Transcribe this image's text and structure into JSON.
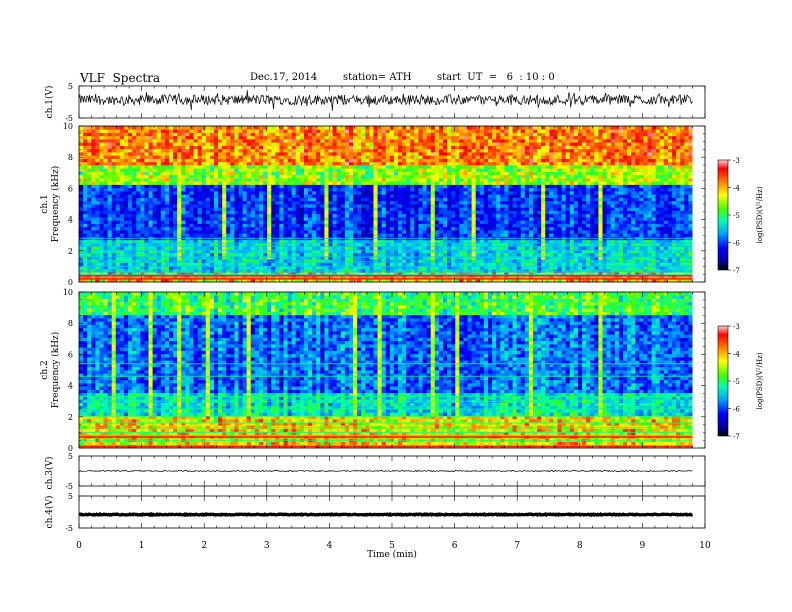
{
  "header": {
    "title": "VLF  Spectra",
    "date": "Dec.17, 2014",
    "station": "station= ATH",
    "start": "start  UT  =   6  : 10 : 0"
  },
  "chart_data": [
    {
      "id": "ch1-voltage",
      "type": "line",
      "ylabel": "ch.1(V)",
      "ylim": [
        -5,
        5
      ],
      "y_ticks": [
        "5",
        "-5"
      ],
      "xlim": [
        0,
        10
      ],
      "x_end_data": 9.8,
      "baseline": 0.7,
      "noise_amplitude": 1.6,
      "color": "#000000"
    },
    {
      "id": "ch1-spectrogram",
      "type": "heatmap",
      "ylabel_line1": "ch.1",
      "ylabel_line2": "Frequency  (kHz)",
      "ylim": [
        0,
        10
      ],
      "y_ticks": [
        "0",
        "2",
        "4",
        "6",
        "8",
        "10"
      ],
      "xlim": [
        0,
        10
      ],
      "x_end_data": 9.8,
      "colorbar": {
        "label": "log(PSD)(V²/Hz)",
        "ticks": [
          "-3",
          "-4",
          "-5",
          "-6",
          "-7"
        ],
        "range": [
          -7,
          -3
        ]
      },
      "bands_khz": [
        0.3,
        0.5,
        0.7,
        1.0,
        1.3,
        1.6,
        2.0,
        2.3,
        2.5,
        2.8
      ],
      "strong_lines_khz": [
        0.2,
        0.4
      ],
      "vertical_bursts_min": [
        1.6,
        2.3,
        3.0,
        3.9,
        4.7,
        5.6,
        6.3,
        7.4,
        8.3
      ]
    },
    {
      "id": "ch2-spectrogram",
      "type": "heatmap",
      "ylabel_line1": "ch.2",
      "ylabel_line2": "Frequency  (kHz)",
      "ylim": [
        0,
        10
      ],
      "y_ticks": [
        "0",
        "2",
        "4",
        "6",
        "8",
        "10"
      ],
      "xlim": [
        0,
        10
      ],
      "x_end_data": 9.8,
      "colorbar": {
        "label": "log(PSD)(V²/Hz)",
        "ticks": [
          "-3",
          "-4",
          "-5",
          "-6",
          "-7"
        ],
        "range": [
          -7,
          -3
        ]
      },
      "bands_khz": [
        0.5,
        0.8,
        1.0,
        1.3,
        1.6,
        2.0,
        2.5,
        3.0,
        3.3,
        4.6,
        5.4
      ],
      "strong_lines_khz": [
        0.1,
        0.7
      ],
      "vertical_bursts_min": [
        0.5,
        1.1,
        1.6,
        2.0,
        2.7,
        4.4,
        4.8,
        5.6,
        6.0,
        7.2,
        8.3
      ]
    },
    {
      "id": "ch3-voltage",
      "type": "line",
      "ylabel": "ch.3(V)",
      "ylim": [
        -5,
        5
      ],
      "y_ticks": [
        "5",
        "-5"
      ],
      "xlim": [
        0,
        10
      ],
      "x_end_data": 9.8,
      "baseline": 0.0,
      "noise_amplitude": 0.2,
      "color": "#000000"
    },
    {
      "id": "ch4-voltage",
      "type": "line",
      "ylabel": "ch.4(V)",
      "ylim": [
        -5,
        5
      ],
      "y_ticks": [
        "5",
        "-5"
      ],
      "xlim": [
        0,
        10
      ],
      "x_end_data": 9.8,
      "baseline": -0.8,
      "noise_amplitude": 0.15,
      "thick": true,
      "color": "#000000"
    }
  ],
  "x_axis": {
    "label": "Time  (min)",
    "ticks": [
      "0",
      "1",
      "2",
      "3",
      "4",
      "5",
      "6",
      "7",
      "8",
      "9",
      "10"
    ],
    "range": [
      0,
      10
    ]
  }
}
